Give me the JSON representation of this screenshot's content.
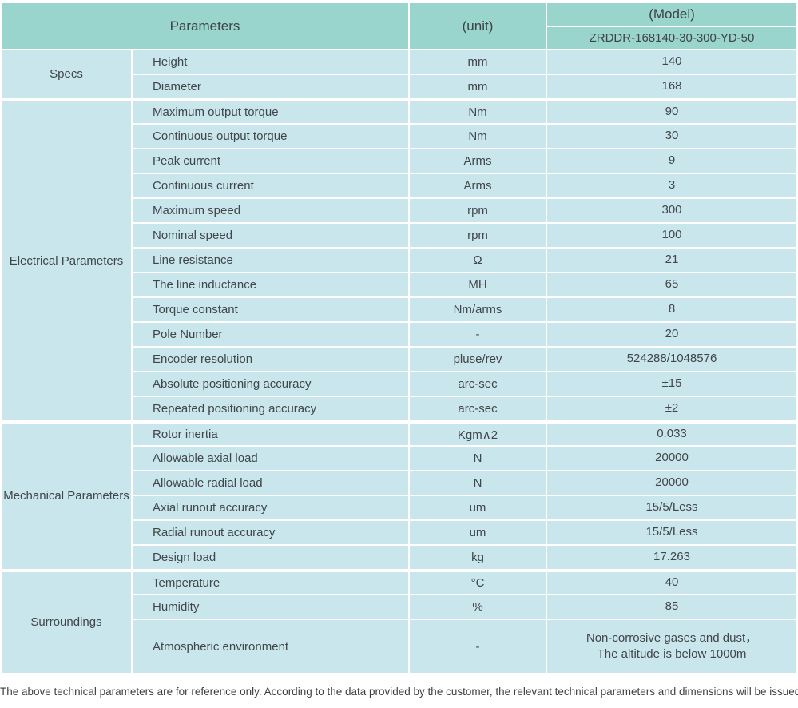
{
  "header": {
    "parameters_label": "Parameters",
    "unit_label": "(unit)",
    "model_label": "(Model)",
    "model_value": "ZRDDR-168140-30-300-YD-50"
  },
  "sections": [
    {
      "category": "Specs",
      "rows": [
        {
          "name": "Height",
          "unit": "mm",
          "value": "140"
        },
        {
          "name": "Diameter",
          "unit": "mm",
          "value": "168"
        }
      ]
    },
    {
      "category": "Electrical Parameters",
      "rows": [
        {
          "name": "Maximum output torque",
          "unit": "Nm",
          "value": "90"
        },
        {
          "name": "Continuous output torque",
          "unit": "Nm",
          "value": "30"
        },
        {
          "name": "Peak current",
          "unit": "Arms",
          "value": "9"
        },
        {
          "name": "Continuous current",
          "unit": "Arms",
          "value": "3"
        },
        {
          "name": "Maximum speed",
          "unit": "rpm",
          "value": "300"
        },
        {
          "name": "Nominal speed",
          "unit": "rpm",
          "value": "100"
        },
        {
          "name": "Line resistance",
          "unit": "Ω",
          "value": "21"
        },
        {
          "name": "The line inductance",
          "unit": "MH",
          "value": "65"
        },
        {
          "name": "Torque constant",
          "unit": "Nm/arms",
          "value": "8"
        },
        {
          "name": "Pole Number",
          "unit": "-",
          "value": "20"
        },
        {
          "name": "Encoder resolution",
          "unit": "pluse/rev",
          "value": "524288/1048576"
        },
        {
          "name": "Absolute positioning accuracy",
          "unit": "arc-sec",
          "value": "±15"
        },
        {
          "name": "Repeated positioning accuracy",
          "unit": "arc-sec",
          "value": "±2"
        }
      ]
    },
    {
      "category": "Mechanical Parameters",
      "rows": [
        {
          "name": "Rotor inertia",
          "unit": "Kgm∧2",
          "value": "0.033"
        },
        {
          "name": "Allowable axial load",
          "unit": "N",
          "value": "20000"
        },
        {
          "name": "Allowable radial load",
          "unit": "N",
          "value": "20000"
        },
        {
          "name": "Axial runout accuracy",
          "unit": "um",
          "value": "15/5/Less"
        },
        {
          "name": "Radial runout accuracy",
          "unit": "um",
          "value": "15/5/Less"
        },
        {
          "name": "Design load",
          "unit": "kg",
          "value": "17.263"
        }
      ]
    },
    {
      "category": "Surroundings",
      "rows": [
        {
          "name": "Temperature",
          "unit": "°C",
          "value": "40"
        },
        {
          "name": "Humidity",
          "unit": "%",
          "value": "85"
        },
        {
          "name": "Atmospheric environment",
          "unit": "-",
          "value": "Non-corrosive gases and dust，\nThe altitude is below 1000m",
          "tall": true
        }
      ]
    }
  ],
  "footer": {
    "note": "The above technical parameters are for reference only. According to the data provided by the customer, the relevant technical parameters and dimensions will be issued."
  },
  "colors": {
    "header_bg": "#99d4cd",
    "cell_bg": "#c9e6ec",
    "text": "#414649"
  }
}
